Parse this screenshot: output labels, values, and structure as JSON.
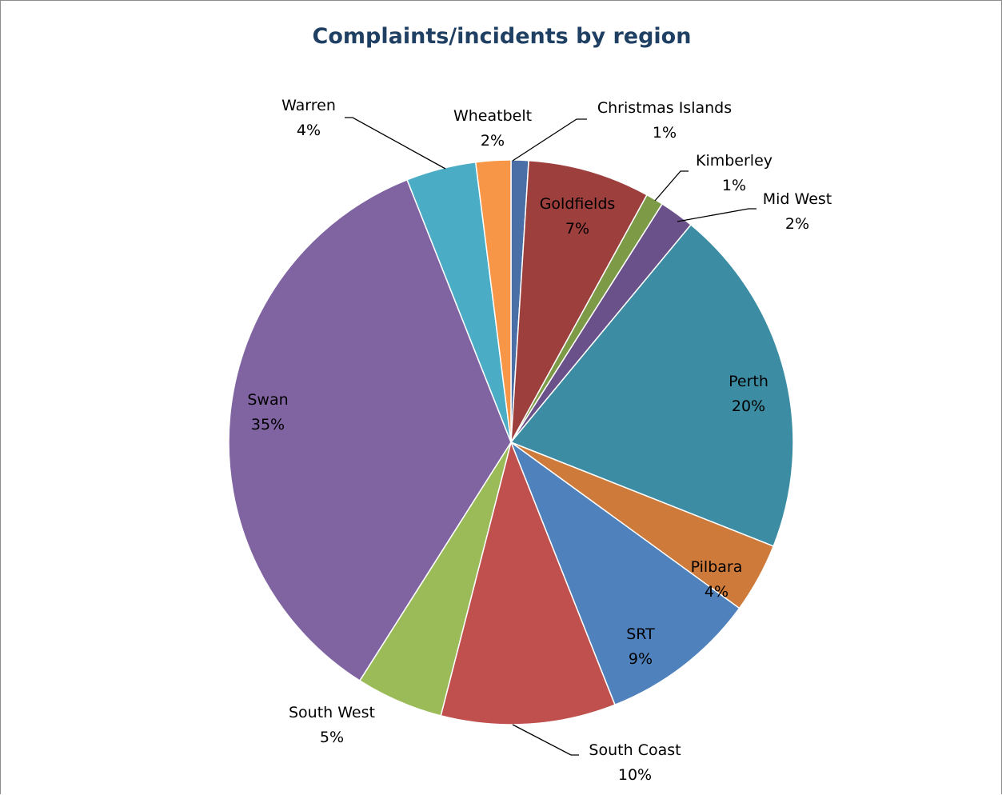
{
  "chart_data": {
    "type": "pie",
    "title": "Complaints/incidents by region",
    "slices": [
      {
        "label": "Christmas Islands",
        "value": 1,
        "display": "1%",
        "color": "#4a6fa6"
      },
      {
        "label": "Goldfields",
        "value": 7,
        "display": "7%",
        "color": "#9d3f3d"
      },
      {
        "label": "Kimberley",
        "value": 1,
        "display": "1%",
        "color": "#7d9a47"
      },
      {
        "label": "Mid West",
        "value": 2,
        "display": "2%",
        "color": "#6a5189"
      },
      {
        "label": "Perth",
        "value": 20,
        "display": "20%",
        "color": "#3c8da3"
      },
      {
        "label": "Pilbara",
        "value": 4,
        "display": "4%",
        "color": "#cd7a3a"
      },
      {
        "label": "SRT",
        "value": 9,
        "display": "9%",
        "color": "#4f81bd"
      },
      {
        "label": "South Coast",
        "value": 10,
        "display": "10%",
        "color": "#c0504d"
      },
      {
        "label": "South West",
        "value": 5,
        "display": "5%",
        "color": "#9bbb59"
      },
      {
        "label": "Swan",
        "value": 35,
        "display": "35%",
        "color": "#8064a2"
      },
      {
        "label": "Warren",
        "value": 4,
        "display": "4%",
        "color": "#4bacc6"
      },
      {
        "label": "Wheatbelt",
        "value": 2,
        "display": "2%",
        "color": "#f79646"
      }
    ]
  }
}
